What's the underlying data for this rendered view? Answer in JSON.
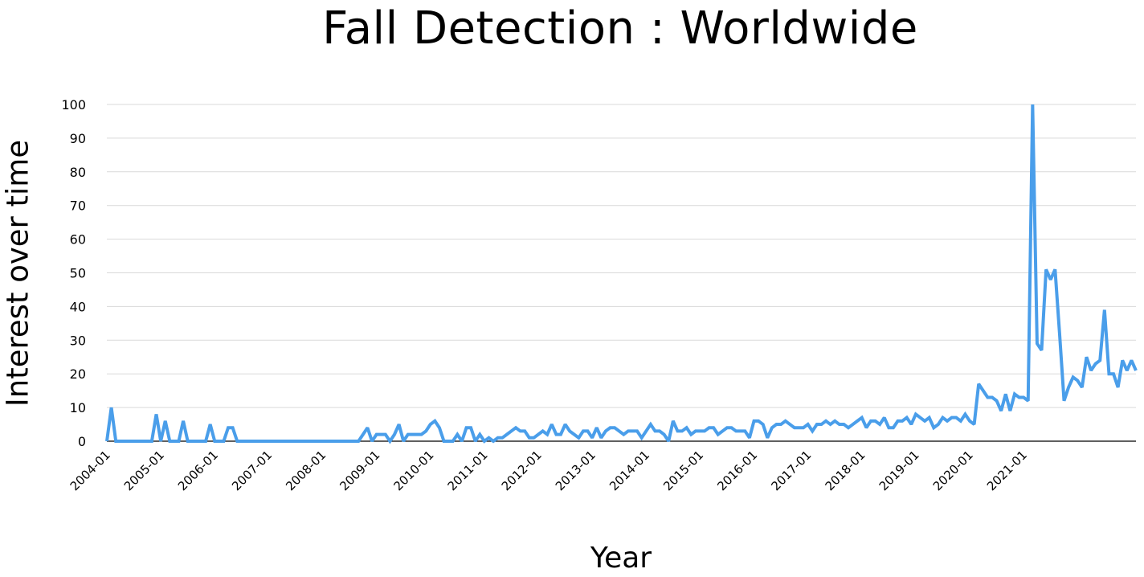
{
  "chart_data": {
    "type": "line",
    "title": "Fall Detection : Worldwide",
    "xlabel": "Year",
    "ylabel": "Interest over time",
    "ylim": [
      0,
      100
    ],
    "yticks": [
      "0",
      "10",
      "20",
      "30",
      "40",
      "50",
      "60",
      "70",
      "80",
      "90",
      "100"
    ],
    "xticks": [
      "2004-01",
      "2005-01",
      "2006-01",
      "2007-01",
      "2008-01",
      "2009-01",
      "2010-01",
      "2011-01",
      "2012-01",
      "2013-01",
      "2014-01",
      "2015-01",
      "2016-01",
      "2017-01",
      "2018-01",
      "2019-01",
      "2020-01",
      "2021-01"
    ],
    "grid": "horizontal",
    "line_color": "#4A9EEA",
    "series": [
      {
        "start": "2004-01",
        "frequency": "monthly",
        "values": [
          0,
          10,
          0,
          0,
          0,
          0,
          0,
          0,
          0,
          0,
          0,
          8,
          0,
          6,
          0,
          0,
          0,
          6,
          0,
          0,
          0,
          0,
          0,
          5,
          0,
          0,
          0,
          4,
          4,
          0,
          0,
          0,
          0,
          0,
          0,
          0,
          0,
          0,
          0,
          0,
          0,
          0,
          0,
          0,
          0,
          0,
          0,
          0,
          0,
          0,
          0,
          0,
          0,
          0,
          0,
          0,
          0,
          2,
          4,
          0,
          2,
          2,
          2,
          0,
          2,
          5,
          0,
          2,
          2,
          2,
          2,
          3,
          5,
          6,
          4,
          0,
          0,
          0,
          2,
          0,
          4,
          4,
          0,
          2,
          0,
          1,
          0,
          1,
          1,
          2,
          3,
          4,
          3,
          3,
          1,
          1,
          2,
          3,
          2,
          5,
          2,
          2,
          5,
          3,
          2,
          1,
          3,
          3,
          1,
          4,
          1,
          3,
          4,
          4,
          3,
          2,
          3,
          3,
          3,
          1,
          3,
          5,
          3,
          3,
          2,
          0,
          6,
          3,
          3,
          4,
          2,
          3,
          3,
          3,
          4,
          4,
          2,
          3,
          4,
          4,
          3,
          3,
          3,
          1,
          6,
          6,
          5,
          1,
          4,
          5,
          5,
          6,
          5,
          4,
          4,
          4,
          5,
          3,
          5,
          5,
          6,
          5,
          6,
          5,
          5,
          4,
          5,
          6,
          7,
          4,
          6,
          6,
          5,
          7,
          4,
          4,
          6,
          6,
          7,
          5,
          8,
          7,
          6,
          7,
          4,
          5,
          7,
          6,
          7,
          7,
          6,
          8,
          6,
          5,
          17,
          15,
          13,
          13,
          12,
          9,
          14,
          9,
          14,
          13,
          13,
          12,
          100,
          29,
          27,
          51,
          48,
          51,
          32,
          12,
          16,
          19,
          18,
          16,
          25,
          21,
          23,
          24,
          39,
          20,
          20,
          16,
          24,
          21,
          24,
          21
        ]
      }
    ]
  }
}
